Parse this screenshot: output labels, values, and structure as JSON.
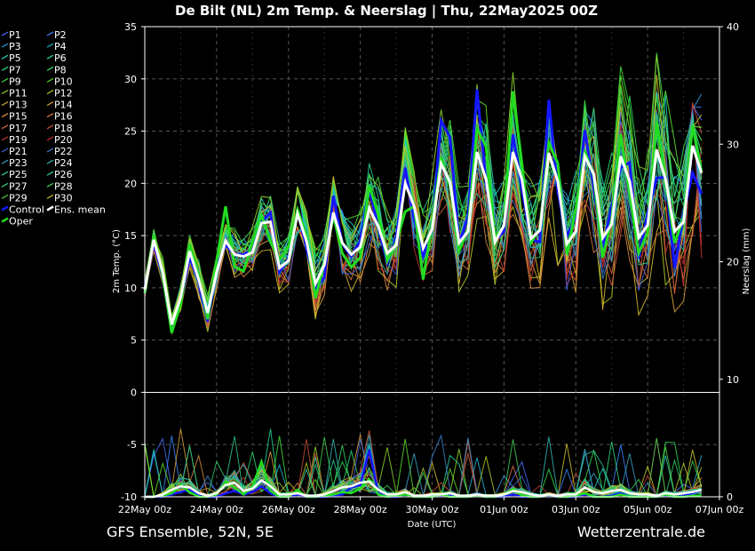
{
  "chart_data": {
    "type": "line",
    "title": "De Bilt  (NL)  2m Temp. & Neerslag | Thu, 22May2025 00Z",
    "xlabel": "Date (UTC)",
    "ylabel_left": "2m Temp. (°C)",
    "ylabel_right": "Neerslag (mm)",
    "footer_left": "GFS Ensemble, 52N, 5E",
    "footer_right": "Wetterzentrale.de",
    "x_ticks": [
      "22May 00z",
      "24May 00z",
      "26May 00z",
      "28May 00z",
      "30May 00z",
      "01Jun 00z",
      "03Jun 00z",
      "05Jun 00z",
      "07Jun 00z"
    ],
    "x_range_days": [
      0,
      16
    ],
    "step_hours": 6,
    "temp_ylim": [
      -10,
      35
    ],
    "temp_ticks": [
      "-10",
      "-5",
      "0",
      "5",
      "10",
      "15",
      "20",
      "25",
      "30",
      "35"
    ],
    "precip_ylim": [
      0,
      40
    ],
    "precip_ticks": [
      "0",
      "10",
      "20",
      "30",
      "40"
    ],
    "grid": true,
    "legend_placement": "left",
    "legend": [
      "P1",
      "P2",
      "P3",
      "P4",
      "P5",
      "P6",
      "P7",
      "P8",
      "P9",
      "P10",
      "P11",
      "P12",
      "P13",
      "P14",
      "P15",
      "P16",
      "P17",
      "P18",
      "P19",
      "P20",
      "P21",
      "P22",
      "P23",
      "P24",
      "P25",
      "P26",
      "P27",
      "P28",
      "P29",
      "P30",
      "Control",
      "Ens. mean",
      "Oper"
    ],
    "member_colors": [
      "#4b6bff",
      "#3a86ff",
      "#2aa0e8",
      "#1fb5d5",
      "#1fc9b8",
      "#22d39b",
      "#2bd97a",
      "#33dd55",
      "#3ce03a",
      "#5ae02c",
      "#8ed62a",
      "#b8c82a",
      "#d6b72a",
      "#dca33a",
      "#d98c3e",
      "#d6773e",
      "#d3623c",
      "#cc4e3a",
      "#c73c33",
      "#c0302c",
      "#3f62d8",
      "#3a84cf",
      "#35a3c4",
      "#34b9b3",
      "#31c39e",
      "#2fcb88",
      "#32d06d",
      "#3bd252",
      "#57d23e",
      "#c9c22c"
    ],
    "control_color": "#1515ff",
    "mean_color": "#ffffff",
    "oper_color": "#22dd22",
    "ens_mean_temp": [
      9.8,
      14.6,
      11.5,
      6.5,
      9.1,
      13.5,
      10.8,
      7.6,
      11.5,
      14.5,
      13.2,
      13.0,
      13.4,
      16.2,
      16.3,
      11.9,
      12.6,
      17.1,
      14.5,
      10.4,
      12.2,
      17.2,
      14.3,
      13.2,
      13.9,
      17.6,
      15.9,
      13.3,
      14.1,
      20.0,
      17.8,
      13.8,
      15.6,
      21.9,
      20.1,
      14.3,
      15.4,
      23.0,
      20.4,
      14.4,
      16.0,
      23.0,
      20.4,
      14.7,
      15.5,
      22.9,
      20.2,
      14.2,
      15.4,
      22.6,
      20.9,
      14.8,
      16.1,
      22.6,
      20.2,
      14.8,
      16.0,
      23.2,
      20.4,
      15.4,
      16.3,
      23.6,
      21.0
    ],
    "control_temp": [
      10.0,
      14.3,
      11.1,
      5.8,
      8.6,
      13.0,
      10.6,
      6.8,
      12.0,
      14.1,
      13.2,
      13.2,
      13.6,
      16.3,
      17.2,
      11.5,
      12.8,
      17.5,
      13.8,
      10.0,
      11.0,
      18.8,
      14.2,
      13.0,
      14.5,
      19.5,
      15.8,
      12.4,
      14.8,
      21.5,
      16.5,
      13.0,
      15.6,
      26.0,
      24.4,
      14.2,
      16.8,
      29.0,
      20.0,
      14.6,
      15.4,
      24.7,
      19.4,
      14.6,
      14.4,
      28.0,
      19.2,
      14.9,
      16.8,
      25.1,
      19.6,
      13.8,
      17.8,
      21.5,
      22.0,
      12.8,
      17.1,
      20.5,
      20.6,
      11.9,
      17.1,
      21.0,
      19.0
    ],
    "oper_temp": [
      9.5,
      15.0,
      11.2,
      5.7,
      8.5,
      14.2,
      11.2,
      7.0,
      12.6,
      17.8,
      12.0,
      11.6,
      14.4,
      17.0,
      14.4,
      12.7,
      13.9,
      17.5,
      15.0,
      9.0,
      12.5,
      16.9,
      13.3,
      12.0,
      12.9,
      19.8,
      17.0,
      12.6,
      14.4,
      17.3,
      17.8,
      10.8,
      16.2,
      22.5,
      19.7,
      13.5,
      15.6,
      25.3,
      23.5,
      14.8,
      15.9,
      28.8,
      21.9,
      14.3,
      15.7,
      23.9,
      21.9,
      13.2,
      17.6,
      23.1,
      20.7,
      12.9,
      16.6,
      24.7,
      18.9,
      13.3,
      15.3,
      25.9,
      20.3,
      14.3,
      16.7,
      25.5,
      21.1
    ],
    "ens_mean_precip": [
      0,
      0,
      0.2,
      0.6,
      0.9,
      0.8,
      0.3,
      0.1,
      0.3,
      1.0,
      1.2,
      0.5,
      0.7,
      1.4,
      0.9,
      0.2,
      0.2,
      0.3,
      0.1,
      0.1,
      0.2,
      0.5,
      0.8,
      0.9,
      1.2,
      1.3,
      0.6,
      0.2,
      0.2,
      0.4,
      0.1,
      0.1,
      0.2,
      0.2,
      0.3,
      0.1,
      0.1,
      0.2,
      0.1,
      0.1,
      0.2,
      0.5,
      0.4,
      0.2,
      0.1,
      0.2,
      0.1,
      0.2,
      0.2,
      0.8,
      0.4,
      0.3,
      0.5,
      0.6,
      0.3,
      0.2,
      0.2,
      0.1,
      0.3,
      0.2,
      0.3,
      0.4,
      0.6
    ],
    "control_precip": [
      0,
      0,
      0,
      0.2,
      0.4,
      0.6,
      0.1,
      0,
      0,
      0.3,
      0.5,
      0.2,
      0.4,
      0.9,
      0.3,
      0,
      0,
      0.2,
      0,
      0,
      0,
      0.1,
      0.2,
      0.8,
      1.0,
      4.0,
      0.3,
      0,
      0,
      0.2,
      0,
      0,
      0,
      0.1,
      0.2,
      0,
      0,
      0.1,
      0,
      0,
      0,
      0.2,
      0,
      0,
      0,
      0.1,
      0,
      0,
      0,
      0.2,
      0,
      0,
      0.1,
      0.3,
      0,
      0,
      0,
      0,
      0.1,
      0,
      0.1,
      0.3,
      0.6
    ],
    "oper_precip": [
      0,
      0,
      0.1,
      0.3,
      1.0,
      0.4,
      0,
      0,
      0.2,
      1.3,
      0.8,
      0.2,
      0.9,
      3.0,
      0.5,
      0,
      0,
      0.6,
      0,
      0,
      0.1,
      0.2,
      0.4,
      0.3,
      0.7,
      1.5,
      0.2,
      0,
      0.1,
      0.2,
      0,
      0,
      0,
      0.2,
      0,
      0,
      0,
      0.1,
      0,
      0,
      0.2,
      0.7,
      0.1,
      0,
      0,
      0.2,
      0,
      0,
      0.1,
      0.3,
      0,
      0,
      0,
      0.2,
      0,
      0,
      0,
      0,
      0.2,
      0,
      0,
      0.1,
      0.1
    ]
  }
}
